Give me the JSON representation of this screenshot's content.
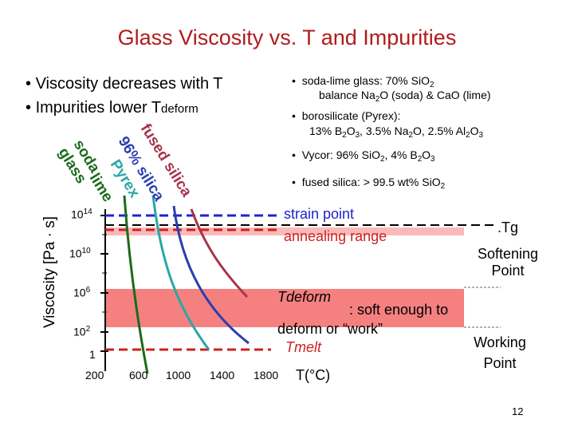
{
  "slide": {
    "title": "Glass Viscosity vs. T and Impurities",
    "page_number": "12",
    "left_bullets": [
      {
        "text": "Viscosity decreases with T"
      },
      {
        "prefix": "Impurities lower T",
        "sub": "deform"
      }
    ],
    "right_bullets": [
      {
        "parts": [
          "soda-lime glass: 70% SiO",
          "2"
        ],
        "line2": [
          "balance Na",
          "2",
          "O (soda) & CaO (lime)"
        ]
      },
      {
        "parts": [
          "borosilicate (Pyrex):"
        ],
        "line2": [
          "13% B",
          "2",
          "O",
          "3",
          ", 3.5% Na",
          "2",
          "O, 2.5% Al",
          "2",
          "O",
          "3"
        ]
      },
      {
        "parts": [
          "Vycor: 96% SiO",
          "2",
          ", 4% B",
          "2",
          "O",
          "3"
        ]
      },
      {
        "parts": [
          "fused silica: > 99.5 wt% SiO",
          "2"
        ]
      }
    ],
    "bullet_symbol": "•"
  },
  "chart_data": {
    "type": "line",
    "ylabel": "Viscosity [Pa · s]",
    "xlabel": "T(°C)",
    "x_ticks": [
      "200",
      "600",
      "1000",
      "1400",
      "1800"
    ],
    "y_ticks": [
      {
        "base": "10",
        "exp": "14"
      },
      {
        "base": "10",
        "exp": "10"
      },
      {
        "base": "10",
        "exp": "6"
      },
      {
        "base": "10",
        "exp": "2"
      },
      {
        "base": "1",
        "exp": ""
      }
    ],
    "series": [
      {
        "name": "soda-lime glass",
        "label_lines": [
          "soda",
          "glass",
          "lime"
        ],
        "color": "#1a6b1a"
      },
      {
        "name": "Pyrex",
        "label_lines": [
          "Pyrex"
        ],
        "color": "#2aa6a6"
      },
      {
        "name": "96% silica",
        "label_lines": [
          "96% silica"
        ],
        "color": "#2a3fb0"
      },
      {
        "name": "fused silica",
        "label_lines": [
          "fused silica"
        ],
        "color": "#a8324a"
      }
    ],
    "reference_lines": [
      {
        "label": "strain point",
        "color": "#2222cc"
      },
      {
        "label": "annealing range",
        "color": "#cc2222"
      },
      {
        "label": ".Tg",
        "color": "#000000"
      },
      {
        "label": "Tmelt",
        "color": "#cc2222"
      }
    ],
    "bands": [
      {
        "label": "Softening Point"
      },
      {
        "label_main": "Tdeform",
        "label_rest": ": soft enough to deform or “work”"
      },
      {
        "label": "Working Point"
      }
    ],
    "band_color": "#f58080"
  }
}
